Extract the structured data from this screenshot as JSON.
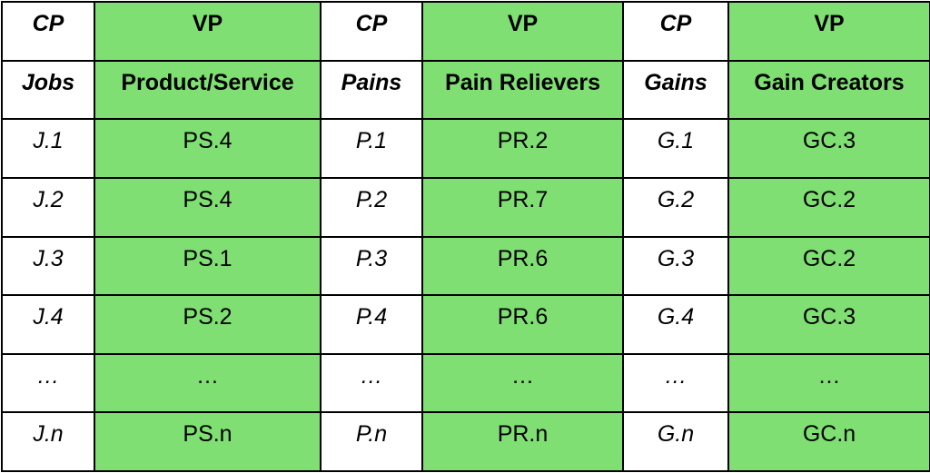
{
  "table": {
    "group_row": [
      "CP",
      "VP",
      "CP",
      "VP",
      "CP",
      "VP"
    ],
    "header_row": [
      "Jobs",
      "Product/Service",
      "Pains",
      "Pain Relievers",
      "Gains",
      "Gain Creators"
    ],
    "rows": [
      [
        "J.1",
        "PS.4",
        "P.1",
        "PR.2",
        "G.1",
        "GC.3"
      ],
      [
        "J.2",
        "PS.4",
        "P.2",
        "PR.7",
        "G.2",
        "GC.2"
      ],
      [
        "J.3",
        "PS.1",
        "P.3",
        "PR.6",
        "G.3",
        "GC.2"
      ],
      [
        "J.4",
        "PS.2",
        "P.4",
        "PR.6",
        "G.4",
        "GC.3"
      ],
      [
        "…",
        "…",
        "…",
        "…",
        "…",
        "…"
      ],
      [
        "J.n",
        "PS.n",
        "P.n",
        "PR.n",
        "G.n",
        "GC.n"
      ]
    ]
  },
  "colors": {
    "vp_fill": "#7fdf72",
    "cp_fill": "#ffffff",
    "border": "#000000"
  }
}
